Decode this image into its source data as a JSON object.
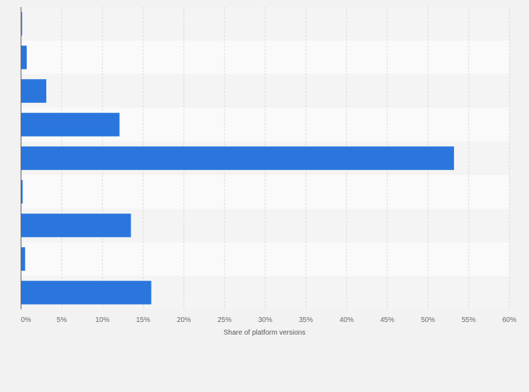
{
  "chart_data": {
    "type": "bar",
    "orientation": "horizontal",
    "categories": [
      "",
      "",
      "",
      "",
      "",
      "",
      "",
      "",
      ""
    ],
    "values": [
      0.1,
      0.7,
      3.1,
      12.1,
      53.2,
      0.2,
      13.5,
      0.5,
      16.0
    ],
    "xlabel": "Share of platform versions",
    "ylabel": "",
    "xlim": [
      0,
      60
    ],
    "x_ticks": [
      "0%",
      "5%",
      "10%",
      "15%",
      "20%",
      "25%",
      "30%",
      "35%",
      "40%",
      "45%",
      "50%",
      "55%",
      "60%"
    ],
    "grid": true,
    "bar_color": "#2a76dd",
    "band_colors": [
      "#f4f4f4",
      "#fafafa"
    ]
  }
}
